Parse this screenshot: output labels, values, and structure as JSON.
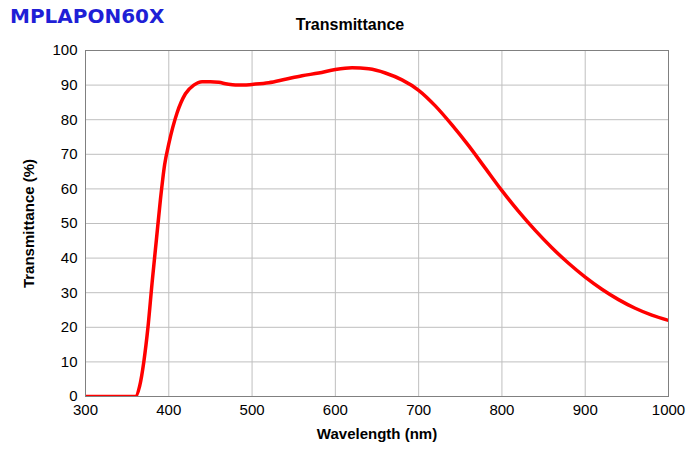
{
  "chart_data": {
    "type": "line",
    "title": "Transmittance",
    "subtitle": "MPLAPON60X",
    "x_label": "Wavelength (nm)",
    "y_label": "Transmittance (%)",
    "x": [
      300,
      320,
      340,
      355,
      360,
      365,
      370,
      375,
      380,
      385,
      390,
      395,
      400,
      410,
      420,
      430,
      440,
      450,
      460,
      470,
      480,
      490,
      500,
      520,
      540,
      560,
      580,
      600,
      620,
      640,
      660,
      680,
      700,
      720,
      740,
      760,
      780,
      800,
      820,
      840,
      860,
      880,
      900,
      920,
      940,
      960,
      980,
      1000
    ],
    "values": [
      0,
      0,
      0,
      0,
      0,
      3,
      10,
      20,
      33,
      45,
      57,
      67,
      73,
      82,
      87.5,
      90,
      91,
      91,
      90.8,
      90.3,
      90,
      90,
      90.2,
      90.7,
      91.7,
      92.7,
      93.5,
      94.5,
      95,
      94.7,
      93.5,
      91.5,
      88.5,
      84,
      78.5,
      72.5,
      66,
      59.5,
      53.5,
      48,
      43,
      38.5,
      34.5,
      31,
      28,
      25.5,
      23.5,
      22
    ],
    "color": "#ff0000",
    "xlim": [
      300,
      1000
    ],
    "xticks": [
      300,
      400,
      500,
      600,
      700,
      800,
      900,
      1000
    ],
    "ylim": [
      0,
      100
    ],
    "yticks": [
      0,
      10,
      20,
      30,
      40,
      50,
      60,
      70,
      80,
      90,
      100
    ],
    "grid": true
  }
}
